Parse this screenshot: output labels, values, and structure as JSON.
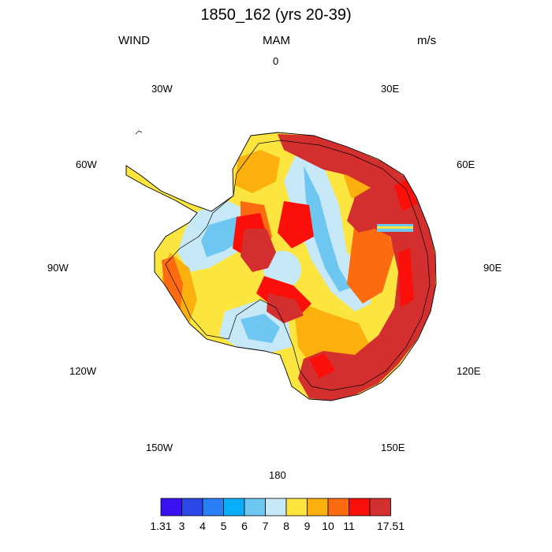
{
  "header": {
    "title": "1850_162 (yrs 20-39)",
    "variable": "WIND",
    "season": "MAM",
    "units": "m/s"
  },
  "longitude_labels": [
    "0",
    "30E",
    "60E",
    "90E",
    "120E",
    "150E",
    "180",
    "150W",
    "120W",
    "90W",
    "60W",
    "30W"
  ],
  "colorbar": {
    "labels": [
      "1.31",
      "3",
      "4",
      "5",
      "6",
      "7",
      "8",
      "9",
      "10",
      "11",
      "17.51"
    ],
    "colors": [
      "#3a12f2",
      "#2d48e8",
      "#2a7ef5",
      "#08aefa",
      "#6dc7f0",
      "#c6e8f7",
      "#fde540",
      "#fbb00e",
      "#fd6b10",
      "#fa0f0a",
      "#d42f2f"
    ]
  }
}
